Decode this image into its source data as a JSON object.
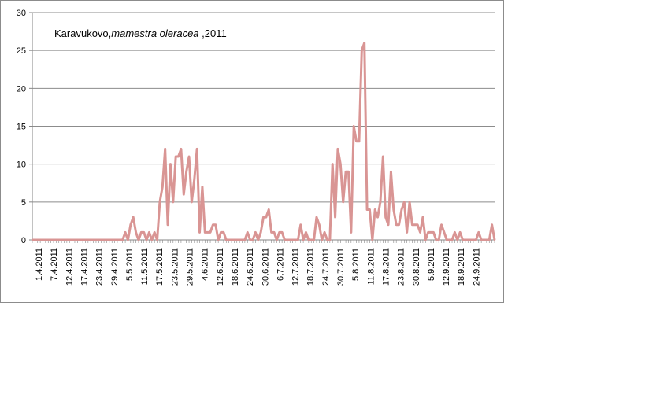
{
  "chart_data": {
    "type": "line",
    "title": {
      "prefix": "Karavukovo,",
      "species": "mamestra oleracea",
      "suffix": " ,2011"
    },
    "xlabel": "",
    "ylabel": "",
    "ylim": [
      0,
      30
    ],
    "y_ticks": [
      0,
      5,
      10,
      15,
      20,
      25,
      30
    ],
    "grid": true,
    "legend": "none",
    "line_color": "#d99594",
    "x_start": "1.4.2011",
    "x_end": "30.9.2011",
    "x_tick_labels": [
      "1.4.2011",
      "7.4.2011",
      "12.4.2011",
      "17.4.2011",
      "23.4.2011",
      "29.4.2011",
      "5.5.2011",
      "11.5.2011",
      "17.5.2011",
      "23.5.2011",
      "29.5.2011",
      "4.6.2011",
      "12.6.2011",
      "18.6.2011",
      "24.6.2011",
      "30.6.2011",
      "6.7.2011",
      "12.7.2011",
      "18.7.2011",
      "24.7.2011",
      "30.7.2011",
      "5.8.2011",
      "11.8.2011",
      "17.8.2011",
      "23.8.2011",
      "30.8.2011",
      "5.9.2011",
      "12.9.2011",
      "18.9.2011",
      "24.9.2011"
    ],
    "series": [
      {
        "values": [
          0,
          0,
          0,
          0,
          0,
          0,
          0,
          0,
          0,
          0,
          0,
          0,
          0,
          0,
          0,
          0,
          0,
          0,
          0,
          0,
          0,
          0,
          0,
          0,
          0,
          0,
          0,
          0,
          0,
          0,
          0,
          0,
          0,
          0,
          0,
          1,
          0,
          2,
          3,
          1,
          0,
          1,
          1,
          0,
          1,
          0,
          1,
          0,
          5,
          7,
          12,
          2,
          10,
          5,
          11,
          11,
          12,
          6,
          9,
          11,
          5,
          8,
          12,
          1,
          7,
          1,
          1,
          1,
          2,
          2,
          0,
          1,
          1,
          0,
          0,
          0,
          0,
          0,
          0,
          0,
          0,
          1,
          0,
          0,
          1,
          0,
          1,
          3,
          3,
          4,
          1,
          1,
          0,
          1,
          1,
          0,
          0,
          0,
          0,
          0,
          0,
          2,
          0,
          1,
          0,
          0,
          0,
          3,
          2,
          0,
          1,
          0,
          0,
          10,
          3,
          12,
          10,
          5,
          9,
          9,
          1,
          15,
          13,
          13,
          25,
          26,
          4,
          4,
          0,
          4,
          3,
          5,
          11,
          3,
          2,
          9,
          4,
          2,
          2,
          4,
          5,
          1,
          5,
          2,
          2,
          2,
          1,
          3,
          0,
          1,
          1,
          1,
          0,
          0,
          2,
          1,
          0,
          0,
          0,
          1,
          0,
          1,
          0,
          0,
          0,
          0,
          0,
          0,
          1,
          0,
          0,
          0,
          0,
          2,
          0
        ]
      }
    ]
  }
}
